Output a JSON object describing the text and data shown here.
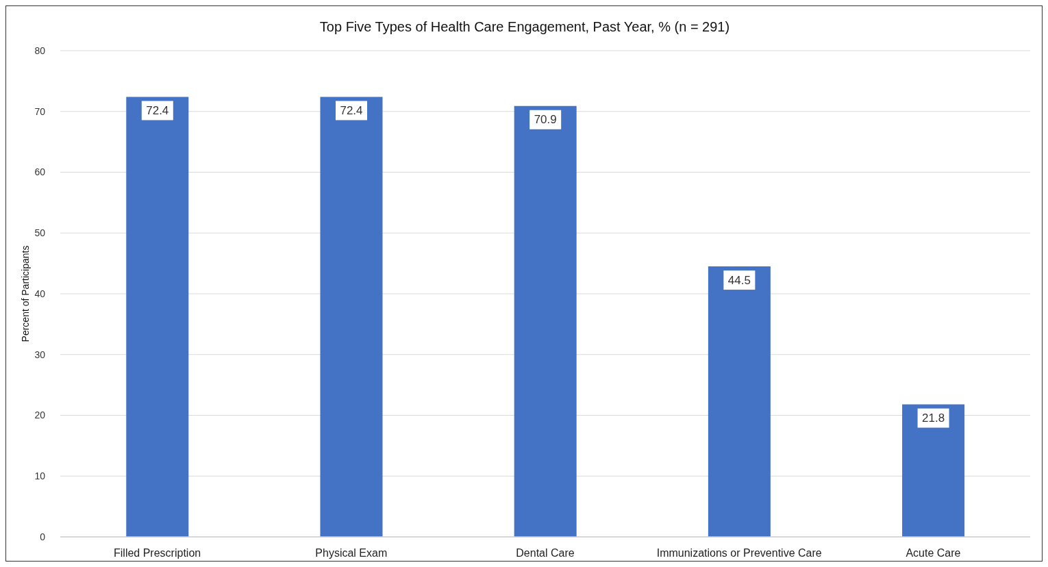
{
  "chart_data": {
    "type": "bar",
    "title": "Top Five Types of Health Care Engagement, Past Year, % (n = 291)",
    "ylabel": "Percent of Participants",
    "categories": [
      "Filled Prescription",
      "Physical Exam",
      "Dental Care",
      "Immunizations or Preventive Care",
      "Acute Care"
    ],
    "values": [
      72.4,
      72.4,
      70.9,
      44.5,
      21.8
    ],
    "color": "#4472c4",
    "ylim": [
      0,
      80
    ],
    "yticks": [
      0,
      10,
      20,
      30,
      40,
      50,
      60,
      70,
      80
    ],
    "grid": "y",
    "data_labels": true
  }
}
